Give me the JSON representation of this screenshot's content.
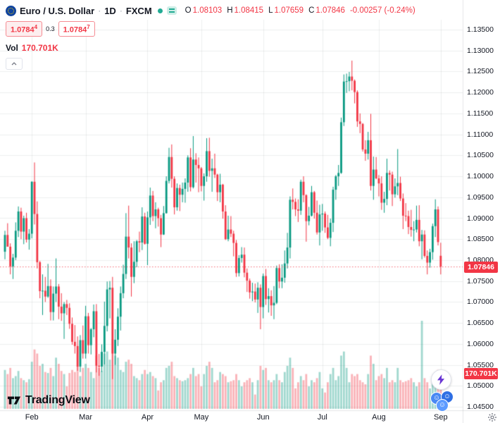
{
  "header": {
    "symbol": "Euro / U.S. Dollar",
    "separator": "·",
    "interval": "1D",
    "exchange": "FXCM",
    "ohlc": {
      "open_label": "O",
      "open": "1.08103",
      "high_label": "H",
      "high": "1.08415",
      "low_label": "L",
      "low": "1.07659",
      "close_label": "C",
      "close": "1.07846",
      "change": "-0.00257 (-0.24%)"
    },
    "quote": {
      "sell_main": "1.0784",
      "sell_sup": "4",
      "spread": "0.3",
      "buy_main": "1.0784",
      "buy_sup": "7"
    },
    "volume_label": "Vol",
    "volume_value": "170.701K"
  },
  "axes": {
    "price_labels": [
      "1.13500",
      "1.13000",
      "1.12500",
      "1.12000",
      "1.11500",
      "1.11000",
      "1.10500",
      "1.10000",
      "1.09500",
      "1.09000",
      "1.08500",
      "1.08000",
      "1.07500",
      "1.07000",
      "1.06500",
      "1.06000",
      "1.05500",
      "1.05000",
      "1.04500"
    ]
  },
  "floating_labels": {
    "last_price": "1.07846",
    "last_volume": "170.701K"
  },
  "logo": {
    "text": "TradingView"
  },
  "colors": {
    "up": "#089981",
    "down": "#f23645",
    "volume_up": "rgba(8,153,129,0.38)",
    "volume_down": "rgba(242,54,69,0.38)",
    "accent_red": "#f23645",
    "text": "#131722",
    "muted": "#787b86",
    "grid": "rgba(42,46,57,0.08)"
  },
  "chart_data": {
    "type": "candlestick",
    "symbol": "EURUSD",
    "interval": "1D",
    "exchange": "FXCM",
    "ylim": [
      1.045,
      1.135
    ],
    "price_step": 0.005,
    "grid": true,
    "months": [
      {
        "label": "Feb",
        "start_index": 10
      },
      {
        "label": "Mar",
        "start_index": 30
      },
      {
        "label": "Apr",
        "start_index": 53
      },
      {
        "label": "May",
        "start_index": 73
      },
      {
        "label": "Jun",
        "start_index": 96
      },
      {
        "label": "Jul",
        "start_index": 118
      },
      {
        "label": "Aug",
        "start_index": 139
      },
      {
        "label": "Sep",
        "start_index": 162
      }
    ],
    "columns": [
      "open",
      "high",
      "low",
      "close",
      "volume_k"
    ],
    "candles": [
      [
        1.082,
        1.087,
        1.0802,
        1.086,
        190
      ],
      [
        1.086,
        1.0888,
        1.0836,
        1.0832,
        170
      ],
      [
        1.0832,
        1.084,
        1.0766,
        1.0785,
        200
      ],
      [
        1.0785,
        1.0815,
        1.0755,
        1.0806,
        150
      ],
      [
        1.0806,
        1.089,
        1.08,
        1.087,
        160
      ],
      [
        1.087,
        1.0928,
        1.0855,
        1.0916,
        185
      ],
      [
        1.0916,
        1.0925,
        1.085,
        1.0868,
        150
      ],
      [
        1.0868,
        1.0906,
        1.0838,
        1.09,
        140
      ],
      [
        1.09,
        1.0913,
        1.0842,
        1.0849,
        130
      ],
      [
        1.0849,
        1.0874,
        1.0825,
        1.0863,
        145
      ],
      [
        1.0863,
        1.0988,
        1.0852,
        1.0987,
        230
      ],
      [
        1.0987,
        1.1033,
        1.0885,
        1.091,
        290
      ],
      [
        1.091,
        1.094,
        1.078,
        1.0795,
        270
      ],
      [
        1.0795,
        1.0798,
        1.0709,
        1.0726,
        210
      ],
      [
        1.0726,
        1.0766,
        1.0669,
        1.0727,
        220
      ],
      [
        1.0727,
        1.076,
        1.07,
        1.0713,
        180
      ],
      [
        1.0713,
        1.0791,
        1.071,
        1.0738,
        175
      ],
      [
        1.0738,
        1.0754,
        1.0656,
        1.0676,
        200
      ],
      [
        1.0676,
        1.0737,
        1.0656,
        1.072,
        160
      ],
      [
        1.072,
        1.0804,
        1.07,
        1.0737,
        250
      ],
      [
        1.0737,
        1.0743,
        1.0659,
        1.0689,
        220
      ],
      [
        1.0689,
        1.0721,
        1.0655,
        1.0673,
        185
      ],
      [
        1.0673,
        1.07,
        1.0612,
        1.0695,
        170
      ],
      [
        1.0695,
        1.0705,
        1.0669,
        1.0686,
        110
      ],
      [
        1.0686,
        1.0697,
        1.0636,
        1.0648,
        175
      ],
      [
        1.0648,
        1.0663,
        1.0598,
        1.0605,
        190
      ],
      [
        1.0605,
        1.0645,
        1.0577,
        1.0595,
        180
      ],
      [
        1.0595,
        1.0618,
        1.0536,
        1.0546,
        210
      ],
      [
        1.0546,
        1.0621,
        1.0533,
        1.0609,
        160
      ],
      [
        1.0609,
        1.0644,
        1.0565,
        1.0577,
        200
      ],
      [
        1.0577,
        1.0691,
        1.0565,
        1.0666,
        220
      ],
      [
        1.0666,
        1.0674,
        1.0577,
        1.0597,
        200
      ],
      [
        1.0597,
        1.0638,
        1.0575,
        1.0635,
        180
      ],
      [
        1.0635,
        1.0694,
        1.0616,
        1.0678,
        150
      ],
      [
        1.0678,
        1.0695,
        1.0532,
        1.0548,
        260
      ],
      [
        1.0548,
        1.0576,
        1.0524,
        1.0546,
        200
      ],
      [
        1.0546,
        1.0599,
        1.0533,
        1.0581,
        185
      ],
      [
        1.0581,
        1.0701,
        1.0551,
        1.0643,
        270
      ],
      [
        1.0643,
        1.0749,
        1.063,
        1.073,
        280
      ],
      [
        1.073,
        1.075,
        1.0661,
        1.0734,
        240
      ],
      [
        1.0734,
        1.076,
        1.0516,
        1.0577,
        340
      ],
      [
        1.0577,
        1.0635,
        1.055,
        1.061,
        260
      ],
      [
        1.061,
        1.0685,
        1.0595,
        1.0665,
        250
      ],
      [
        1.0665,
        1.0737,
        1.0632,
        1.0721,
        190
      ],
      [
        1.0721,
        1.0789,
        1.0709,
        1.0767,
        180
      ],
      [
        1.0767,
        1.0912,
        1.0755,
        1.0856,
        230
      ],
      [
        1.0856,
        1.093,
        1.0804,
        1.083,
        240
      ],
      [
        1.083,
        1.084,
        1.0713,
        1.076,
        220
      ],
      [
        1.076,
        1.0845,
        1.0745,
        1.0796,
        160
      ],
      [
        1.0796,
        1.0848,
        1.0783,
        1.0845,
        150
      ],
      [
        1.0845,
        1.0868,
        1.0819,
        1.0842,
        140
      ],
      [
        1.0842,
        1.0926,
        1.0824,
        1.0904,
        170
      ],
      [
        1.0904,
        1.0913,
        1.0837,
        1.0839,
        190
      ],
      [
        1.0839,
        1.0916,
        1.0788,
        1.0902,
        170
      ],
      [
        1.0902,
        1.0973,
        1.0884,
        1.0954,
        180
      ],
      [
        1.0954,
        1.0965,
        1.0893,
        1.0905,
        160
      ],
      [
        1.0905,
        1.0938,
        1.0876,
        1.0921,
        150
      ],
      [
        1.0921,
        1.0925,
        1.088,
        1.09,
        90
      ],
      [
        1.09,
        1.0908,
        1.0831,
        1.0861,
        130
      ],
      [
        1.0861,
        1.0929,
        1.086,
        1.0912,
        140
      ],
      [
        1.0912,
        1.1,
        1.0911,
        1.0989,
        200
      ],
      [
        1.0989,
        1.1068,
        1.0983,
        1.1046,
        210
      ],
      [
        1.1046,
        1.1076,
        1.0973,
        1.0994,
        230
      ],
      [
        1.0994,
        1.1,
        1.0909,
        1.0926,
        160
      ],
      [
        1.0926,
        1.0983,
        1.0918,
        1.0972,
        150
      ],
      [
        1.0972,
        1.098,
        1.0917,
        1.0956,
        140
      ],
      [
        1.0956,
        1.0985,
        1.0938,
        1.097,
        135
      ],
      [
        1.097,
        1.0995,
        1.0937,
        1.0985,
        140
      ],
      [
        1.0985,
        1.105,
        1.0963,
        1.1045,
        150
      ],
      [
        1.1045,
        1.1067,
        1.0964,
        1.0974,
        170
      ],
      [
        1.0974,
        1.1096,
        1.0971,
        1.104,
        200
      ],
      [
        1.104,
        1.1055,
        1.0985,
        1.1027,
        160
      ],
      [
        1.1027,
        1.1045,
        1.0962,
        1.1019,
        170
      ],
      [
        1.1019,
        1.1022,
        1.0964,
        1.0977,
        110
      ],
      [
        1.0977,
        1.1007,
        1.0942,
        1.1,
        170
      ],
      [
        1.1,
        1.1091,
        1.0987,
        1.106,
        210
      ],
      [
        1.106,
        1.1092,
        1.0999,
        1.1013,
        230
      ],
      [
        1.1013,
        1.1042,
        1.0963,
        1.1019,
        200
      ],
      [
        1.1019,
        1.1054,
        1.0996,
        1.1004,
        130
      ],
      [
        1.1004,
        1.1006,
        1.0941,
        1.0962,
        140
      ],
      [
        1.0962,
        1.1006,
        1.0938,
        1.098,
        180
      ],
      [
        1.098,
        1.0982,
        1.0899,
        1.0916,
        170
      ],
      [
        1.0916,
        1.0931,
        1.0848,
        1.085,
        160
      ],
      [
        1.085,
        1.0906,
        1.0845,
        1.0873,
        130
      ],
      [
        1.0873,
        1.0905,
        1.0855,
        1.0863,
        135
      ],
      [
        1.0863,
        1.087,
        1.0809,
        1.0841,
        140
      ],
      [
        1.0841,
        1.0848,
        1.076,
        1.0769,
        170
      ],
      [
        1.0769,
        1.0812,
        1.0761,
        1.0805,
        140
      ],
      [
        1.0805,
        1.0831,
        1.0794,
        1.0813,
        110
      ],
      [
        1.0813,
        1.083,
        1.0759,
        1.077,
        130
      ],
      [
        1.077,
        1.078,
        1.0724,
        1.0751,
        140
      ],
      [
        1.0751,
        1.0756,
        1.0708,
        1.0723,
        150
      ],
      [
        1.0723,
        1.0746,
        1.0702,
        1.0725,
        130
      ],
      [
        1.0725,
        1.0744,
        1.0699,
        1.0706,
        70
      ],
      [
        1.0706,
        1.0747,
        1.0674,
        1.0734,
        140
      ],
      [
        1.0734,
        1.0742,
        1.0635,
        1.0688,
        210
      ],
      [
        1.0688,
        1.0768,
        1.0661,
        1.0762,
        190
      ],
      [
        1.0762,
        1.0779,
        1.0693,
        1.0707,
        200
      ],
      [
        1.0707,
        1.0733,
        1.0675,
        1.0714,
        140
      ],
      [
        1.0714,
        1.0728,
        1.0667,
        1.0692,
        130
      ],
      [
        1.0692,
        1.0738,
        1.0659,
        1.0698,
        140
      ],
      [
        1.0698,
        1.0787,
        1.0695,
        1.0781,
        170
      ],
      [
        1.0781,
        1.079,
        1.0733,
        1.0749,
        140
      ],
      [
        1.0749,
        1.079,
        1.0733,
        1.0758,
        130
      ],
      [
        1.0758,
        1.0823,
        1.0746,
        1.0792,
        180
      ],
      [
        1.0792,
        1.0865,
        1.078,
        1.083,
        210
      ],
      [
        1.083,
        1.0952,
        1.0804,
        1.0944,
        250
      ],
      [
        1.0944,
        1.0971,
        1.0921,
        1.0939,
        200
      ],
      [
        1.0939,
        1.0947,
        1.0905,
        1.0921,
        100
      ],
      [
        1.0921,
        1.0945,
        1.0891,
        1.0918,
        130
      ],
      [
        1.0918,
        1.0992,
        1.0908,
        1.0987,
        160
      ],
      [
        1.0987,
        1.1,
        1.0938,
        1.0955,
        140
      ],
      [
        1.0955,
        1.0957,
        1.0844,
        1.0893,
        170
      ],
      [
        1.0893,
        1.0927,
        1.0883,
        1.0906,
        110
      ],
      [
        1.0906,
        1.0977,
        1.0904,
        1.0962,
        140
      ],
      [
        1.0962,
        1.0965,
        1.0899,
        1.0913,
        130
      ],
      [
        1.0913,
        1.0942,
        1.0861,
        1.0866,
        150
      ],
      [
        1.0866,
        1.0932,
        1.0835,
        1.0909,
        180
      ],
      [
        1.0909,
        1.0934,
        1.087,
        1.0911,
        100
      ],
      [
        1.0911,
        1.0916,
        1.0865,
        1.0878,
        80
      ],
      [
        1.0878,
        1.0908,
        1.085,
        1.0853,
        130
      ],
      [
        1.0853,
        1.0899,
        1.0833,
        1.0889,
        170
      ],
      [
        1.0889,
        1.0975,
        1.0867,
        1.0968,
        200
      ],
      [
        1.0968,
        1.1003,
        1.0944,
        1.1,
        140
      ],
      [
        1.1,
        1.1027,
        1.0977,
        1.1008,
        160
      ],
      [
        1.1008,
        1.114,
        1.1006,
        1.1129,
        260
      ],
      [
        1.1129,
        1.1243,
        1.112,
        1.1226,
        280
      ],
      [
        1.1226,
        1.1245,
        1.1199,
        1.1227,
        200
      ],
      [
        1.1227,
        1.1249,
        1.1203,
        1.1238,
        130
      ],
      [
        1.1238,
        1.1276,
        1.1205,
        1.1228,
        170
      ],
      [
        1.1228,
        1.1231,
        1.1174,
        1.1201,
        160
      ],
      [
        1.1201,
        1.1205,
        1.1118,
        1.1131,
        170
      ],
      [
        1.1131,
        1.115,
        1.1103,
        1.1125,
        140
      ],
      [
        1.1125,
        1.1127,
        1.1059,
        1.1064,
        130
      ],
      [
        1.1064,
        1.1086,
        1.1037,
        1.1054,
        120
      ],
      [
        1.1054,
        1.1106,
        1.104,
        1.1086,
        170
      ],
      [
        1.1086,
        1.1149,
        1.0966,
        1.0977,
        260
      ],
      [
        1.0977,
        1.1047,
        1.0944,
        1.1016,
        220
      ],
      [
        1.1016,
        1.1046,
        1.0993,
        1.0995,
        140
      ],
      [
        1.0995,
        1.1003,
        1.0952,
        1.0983,
        160
      ],
      [
        1.0983,
        1.1,
        1.092,
        1.0937,
        170
      ],
      [
        1.0937,
        1.0963,
        1.0913,
        1.0946,
        150
      ],
      [
        1.0946,
        1.1042,
        1.0931,
        1.1008,
        200
      ],
      [
        1.1008,
        1.1014,
        1.0966,
        1.1004,
        130
      ],
      [
        1.1004,
        1.1011,
        1.0929,
        1.0957,
        140
      ],
      [
        1.0957,
        1.0995,
        1.0949,
        1.0976,
        130
      ],
      [
        1.0976,
        1.1065,
        1.0955,
        1.0984,
        200
      ],
      [
        1.0984,
        1.0999,
        1.0941,
        1.0947,
        140
      ],
      [
        1.0947,
        1.0959,
        1.0874,
        1.0906,
        130
      ],
      [
        1.0906,
        1.0936,
        1.0893,
        1.0905,
        135
      ],
      [
        1.0905,
        1.0918,
        1.0862,
        1.0879,
        140
      ],
      [
        1.0879,
        1.092,
        1.0856,
        1.0872,
        150
      ],
      [
        1.0872,
        1.0893,
        1.0845,
        1.0873,
        130
      ],
      [
        1.0873,
        1.093,
        1.0866,
        1.0896,
        110
      ],
      [
        1.0896,
        1.0931,
        1.0833,
        1.0845,
        130
      ],
      [
        1.0845,
        1.0872,
        1.0802,
        1.0861,
        430
      ],
      [
        1.0861,
        1.0871,
        1.0806,
        1.081,
        150
      ],
      [
        1.081,
        1.0823,
        1.0766,
        1.0794,
        130
      ],
      [
        1.0794,
        1.0827,
        1.0782,
        1.0819,
        100
      ],
      [
        1.0819,
        1.0887,
        1.0801,
        1.0881,
        140
      ],
      [
        1.0881,
        1.0945,
        1.0855,
        1.0921,
        160
      ],
      [
        1.0921,
        1.0928,
        1.0835,
        1.0843,
        190
      ],
      [
        1.08103,
        1.08415,
        1.07659,
        1.07846,
        170.701
      ]
    ],
    "last": {
      "open": 1.08103,
      "high": 1.08415,
      "low": 1.07659,
      "close": 1.07846,
      "volume_k": 170.701
    }
  }
}
